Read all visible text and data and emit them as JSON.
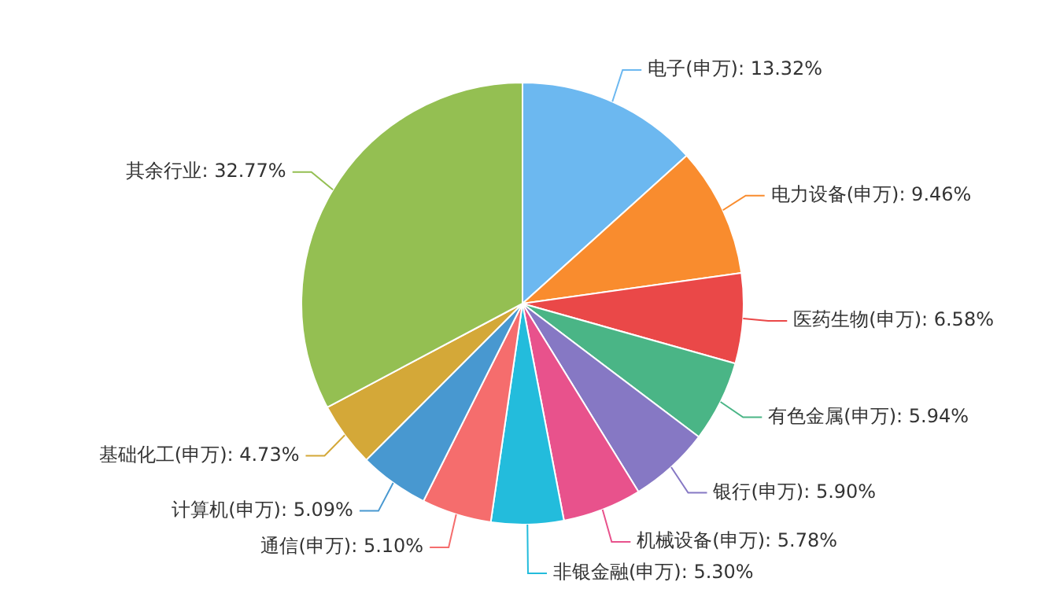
{
  "chart_data": {
    "type": "pie",
    "categories": [
      "电子(申万)",
      "电力设备(申万)",
      "医药生物(申万)",
      "有色金属(申万)",
      "银行(申万)",
      "机械设备(申万)",
      "非银金融(申万)",
      "通信(申万)",
      "计算机(申万)",
      "基础化工(申万)",
      "其余行业"
    ],
    "values": [
      13.32,
      9.46,
      6.58,
      5.94,
      5.9,
      5.78,
      5.3,
      5.1,
      5.09,
      4.73,
      32.77
    ],
    "value_labels": [
      "13.32%",
      "9.46%",
      "6.58%",
      "5.94%",
      "5.90%",
      "5.78%",
      "5.30%",
      "5.10%",
      "5.09%",
      "4.73%",
      "32.77%"
    ],
    "colors": [
      "#6cb8f0",
      "#f98c2e",
      "#ea4848",
      "#4ab586",
      "#8678c4",
      "#e8528c",
      "#23bcdc",
      "#f56d6d",
      "#4898d0",
      "#d4a838",
      "#94bf52"
    ],
    "legend": false
  }
}
